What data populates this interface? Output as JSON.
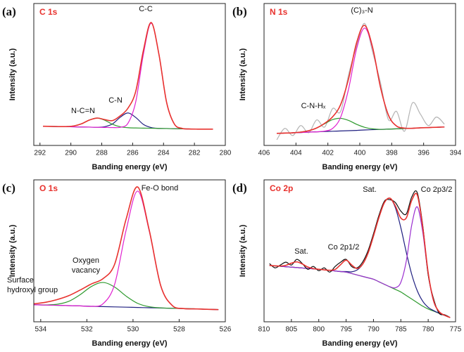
{
  "chart_data": [
    {
      "type": "line",
      "label": "(a)",
      "title": "C 1s",
      "xlabel": "Banding energy (eV)",
      "ylabel": "Intensity (a.u.)",
      "xlim": [
        292.4,
        280
      ],
      "xticks": [
        292,
        290,
        288,
        286,
        284,
        282,
        280
      ],
      "ylim": [
        0,
        100
      ],
      "annotations": [
        {
          "lines": [
            "C-C"
          ]
        },
        {
          "lines": [
            "C-N"
          ]
        },
        {
          "lines": [
            "N-C=N"
          ]
        }
      ],
      "x": [
        291.8,
        291.3,
        290.8,
        290.3,
        289.8,
        289.3,
        288.8,
        288.3,
        287.8,
        287.3,
        286.8,
        286.3,
        285.8,
        285.3,
        284.8,
        284.3,
        283.8,
        283.3,
        282.8,
        282.3,
        281.8,
        281.3,
        280.8
      ],
      "series": [
        {
          "color": "#1f1f80",
          "values": [
            13.5,
            13.4,
            13.3,
            13.2,
            13.1,
            13.0,
            12.9,
            12.8,
            13.2,
            15.2,
            19.9,
            22.9,
            19.7,
            14.8,
            12.6,
            12.0,
            11.9,
            11.8,
            11.7,
            11.6,
            11.5,
            11.5,
            11.5
          ]
        },
        {
          "color": "#2e9a2e",
          "values": [
            13.5,
            13.4,
            13.3,
            13.3,
            13.75,
            15.3,
            17.9,
            19.3,
            17.7,
            14.9,
            13.15,
            12.5,
            12.3,
            12.2,
            12.1,
            12.0,
            11.9,
            11.8,
            11.7,
            11.6,
            11.5,
            11.5,
            11.5
          ]
        },
        {
          "color": "#e020d0",
          "values": [
            13.5,
            13.4,
            13.3,
            13.2,
            13.1,
            13.0,
            12.9,
            12.8,
            12.7,
            12.6,
            12.8,
            15.7,
            30.7,
            64.5,
            86.1,
            64.3,
            30.3,
            15.1,
            12.0,
            11.6,
            11.5,
            11.5,
            11.5
          ]
        },
        {
          "color": "#e8322e",
          "values": [
            13.5,
            13.4,
            13.3,
            13.3,
            13.75,
            15.3,
            17.9,
            19.3,
            18.2,
            17.5,
            20.9,
            26.3,
            38.1,
            67.1,
            86.6,
            64.3,
            30.3,
            15.1,
            12.0,
            11.6,
            11.5,
            11.5,
            11.5
          ]
        }
      ]
    },
    {
      "type": "line",
      "label": "(b)",
      "title": "N 1s",
      "xlabel": "Banding energy (eV)",
      "ylabel": "Intensity (a.u.)",
      "xlim": [
        406,
        394
      ],
      "xticks": [
        406,
        404,
        402,
        400,
        398,
        396,
        394
      ],
      "ylim": [
        0,
        100
      ],
      "annotations": [
        {
          "lines": [
            "(C)₃-N"
          ]
        },
        {
          "lines": [
            "C-N-Hₓ"
          ]
        }
      ],
      "x": [
        405.2,
        404.7,
        404.2,
        403.7,
        403.2,
        402.7,
        402.2,
        401.7,
        401.2,
        400.7,
        400.2,
        399.7,
        399.2,
        398.7,
        398.2,
        397.7,
        397.2,
        396.7,
        396.2,
        395.7,
        395.2,
        394.7
      ],
      "series": [
        {
          "color": "#b4b4b4",
          "values": [
            4,
            12,
            7,
            14,
            9,
            18,
            13,
            26,
            24,
            50,
            70,
            86,
            66,
            44,
            18,
            24,
            10,
            30,
            22,
            14,
            20,
            15
          ]
        },
        {
          "color": "#1f1f80",
          "values": [
            8.5,
            8.7,
            8.9,
            9.1,
            9.4,
            9.6,
            9.8,
            10.0,
            10.2,
            10.4,
            10.6,
            10.9,
            11.1,
            11.3,
            11.5,
            11.7,
            11.9,
            12.1,
            12.4,
            12.6,
            12.8,
            13.0
          ]
        },
        {
          "color": "#2e9a2e",
          "values": [
            8.5,
            8.7,
            8.9,
            9.4,
            10.4,
            12.3,
            15.3,
            18.2,
            19.1,
            17.6,
            14.9,
            12.8,
            11.7,
            11.3,
            11.5,
            11.7,
            11.9,
            12.1,
            12.4,
            12.6,
            12.8,
            13.0
          ]
        },
        {
          "color": "#e020d0",
          "values": [
            8.5,
            8.7,
            8.9,
            9.1,
            9.4,
            9.6,
            10.1,
            12.0,
            19.9,
            39.9,
            68.1,
            82.7,
            68.6,
            40.8,
            21.2,
            13.7,
            12.2,
            12.1,
            12.4,
            12.6,
            12.8,
            13.0
          ]
        },
        {
          "color": "#e8322e",
          "values": [
            8.5,
            8.7,
            8.9,
            9.4,
            10.4,
            12.3,
            15.6,
            20.2,
            28.8,
            47.1,
            72.4,
            84.6,
            69.2,
            40.8,
            21.2,
            13.7,
            12.2,
            12.1,
            12.4,
            12.6,
            12.8,
            13.0
          ]
        }
      ]
    },
    {
      "type": "line",
      "label": "(c)",
      "title": "O 1s",
      "xlabel": "Banding energy (eV)",
      "ylabel": "Intensity (a.u.)",
      "xlim": [
        534.3,
        526
      ],
      "xticks": [
        534,
        532,
        530,
        528,
        526
      ],
      "ylim": [
        0,
        100
      ],
      "annotations": [
        {
          "lines": [
            "Fe-O bond"
          ]
        },
        {
          "lines": [
            "Oxygen",
            "vacancy"
          ]
        },
        {
          "lines": [
            "Surface",
            "hydroxyl group"
          ]
        }
      ],
      "x": [
        534.3,
        533.8,
        533.3,
        532.8,
        532.3,
        531.8,
        531.3,
        530.8,
        530.3,
        529.8,
        529.3,
        528.8,
        528.3,
        527.8,
        527.3,
        526.8,
        526.3
      ],
      "series": [
        {
          "color": "#1f1f80",
          "values": [
            12.0,
            11.8,
            11.6,
            11.4,
            11.2,
            10.9,
            10.7,
            10.5,
            10.3,
            10.1,
            9.9,
            9.7,
            9.5,
            9.3,
            9.1,
            8.8,
            8.6
          ]
        },
        {
          "color": "#2e9a2e",
          "values": [
            12.0,
            11.9,
            12.3,
            14.3,
            19.0,
            24.9,
            27.7,
            24.5,
            18.1,
            13.0,
            10.6,
            9.8,
            9.5,
            9.3,
            9.1,
            8.8,
            8.6
          ]
        },
        {
          "color": "#e020d0",
          "values": [
            12.0,
            11.8,
            11.6,
            11.4,
            11.2,
            10.9,
            12.7,
            26.2,
            64.5,
            92.1,
            64.1,
            25.4,
            11.5,
            9.3,
            9.1,
            8.8,
            8.6
          ]
        },
        {
          "color": "#e8322e",
          "values": [
            12.7,
            13.7,
            15.6,
            18.3,
            22.3,
            26.7,
            30.4,
            40.4,
            72.3,
            95.0,
            64.8,
            25.5,
            11.5,
            9.3,
            9.1,
            8.8,
            8.6
          ]
        }
      ]
    },
    {
      "type": "line",
      "label": "(d)",
      "title": "Co 2p",
      "xlabel": "Banding energy (eV)",
      "ylabel": "Intensity (a.u.)",
      "xlim": [
        810,
        775
      ],
      "xticks": [
        810,
        805,
        800,
        795,
        790,
        785,
        780,
        775
      ],
      "ylim": [
        0,
        100
      ],
      "annotations": [
        {
          "lines": [
            "Sat."
          ]
        },
        {
          "lines": [
            "Co 2p3/2"
          ]
        },
        {
          "lines": [
            "Co 2p1/2"
          ]
        },
        {
          "lines": [
            "Sat."
          ]
        }
      ],
      "x": [
        809,
        808,
        807,
        806,
        805,
        804,
        803,
        802,
        801,
        800,
        799,
        798,
        797,
        796,
        795,
        794,
        793,
        792,
        791,
        790,
        789,
        788,
        787,
        786,
        785,
        784,
        783,
        782,
        781,
        780,
        779,
        778,
        777,
        776
      ],
      "series": [
        {
          "color": "#2e9a2e",
          "values": [
            39.7,
            39.4,
            39.1,
            38.8,
            38.5,
            38.2,
            37.9,
            37.6,
            37.3,
            37.0,
            36.6,
            36.2,
            35.8,
            35.4,
            35.0,
            34.0,
            33.0,
            32.0,
            31.0,
            30.0,
            28.2,
            26.4,
            24.6,
            22.8,
            21.0,
            18.5,
            16.0,
            13.5,
            11.0,
            9.0,
            7.5,
            6.0,
            4.5,
            3.0
          ]
        },
        {
          "color": "#1f1f80",
          "values": [
            39.7,
            39.4,
            39.1,
            38.8,
            38.5,
            38.2,
            37.9,
            37.6,
            37.3,
            37.0,
            36.6,
            36.2,
            35.8,
            35.4,
            35.4,
            35.2,
            36.5,
            40.4,
            48.3,
            60.4,
            73.5,
            84.0,
            87.0,
            80.4,
            66.3,
            48.9,
            33.3,
            21.9,
            14.5,
            10.2,
            7.9,
            6.0,
            4.5,
            3.0
          ]
        },
        {
          "color": "#9b2fd0",
          "values": [
            39.7,
            39.4,
            39.1,
            38.8,
            38.5,
            38.2,
            37.9,
            37.6,
            37.3,
            37.0,
            36.6,
            36.2,
            35.8,
            35.4,
            35.0,
            34.0,
            33.0,
            32.0,
            31.0,
            30.0,
            28.2,
            26.4,
            24.7,
            24.0,
            27.8,
            42.8,
            68.3,
            81.0,
            63.3,
            33.3,
            14.3,
            7.2,
            4.6,
            3.0
          ]
        },
        {
          "color": "#111111",
          "values": [
            41,
            38,
            40,
            42,
            40,
            44,
            41,
            37,
            39,
            36,
            38,
            35,
            39,
            42,
            44,
            39,
            38,
            42,
            50,
            62,
            75,
            85,
            86,
            84,
            78,
            76,
            88,
            91,
            68,
            33,
            16,
            6,
            5,
            3
          ]
        },
        {
          "color": "#e8322e",
          "values": [
            39.7,
            39.4,
            39.3,
            39.8,
            41.3,
            42.2,
            40.7,
            38.6,
            37.5,
            37.0,
            36.6,
            36.3,
            36.9,
            40.3,
            43.4,
            40.1,
            37.6,
            40.5,
            48.3,
            60.4,
            73.5,
            84.0,
            87.1,
            81.6,
            73.1,
            73.2,
            85.6,
            89.4,
            66.8,
            34.5,
            14.7,
            7.2,
            4.6,
            3.0
          ]
        }
      ]
    }
  ]
}
